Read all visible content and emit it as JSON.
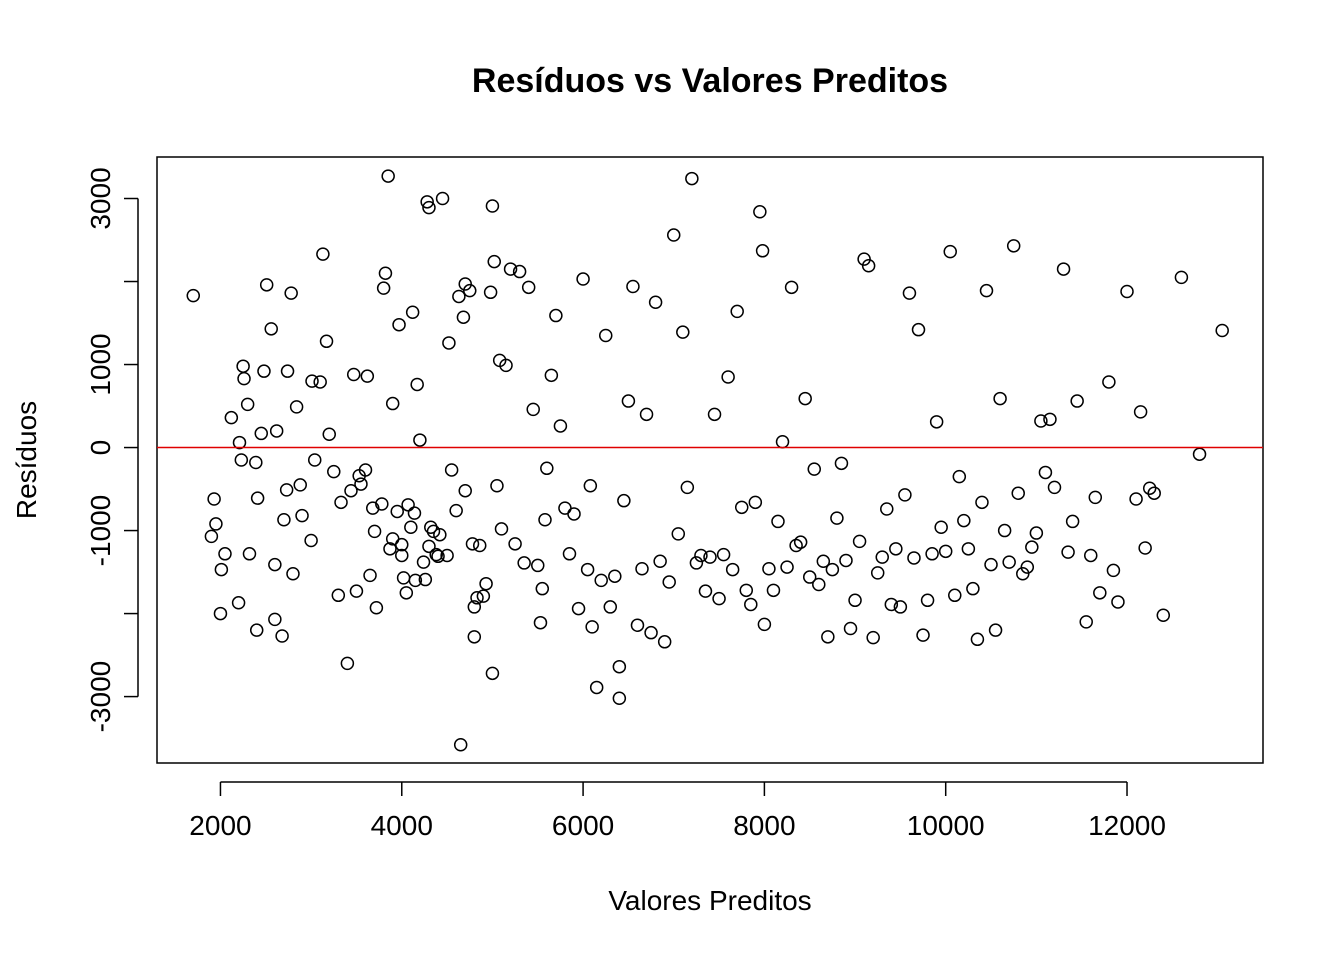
{
  "chart_data": {
    "type": "scatter",
    "title": "Resíduos vs Valores Preditos",
    "xlabel": "Valores Preditos",
    "ylabel": "Resíduos",
    "xlim": [
      1300,
      13500
    ],
    "ylim": [
      -3800,
      3500
    ],
    "x_ticks": [
      {
        "value": 2000,
        "label": "2000"
      },
      {
        "value": 4000,
        "label": "4000"
      },
      {
        "value": 6000,
        "label": "6000"
      },
      {
        "value": 8000,
        "label": "8000"
      },
      {
        "value": 10000,
        "label": "10000"
      },
      {
        "value": 12000,
        "label": "12000"
      }
    ],
    "y_ticks": [
      {
        "value": -3000,
        "label": "-3000"
      },
      {
        "value": -2000,
        "label": ""
      },
      {
        "value": -1000,
        "label": "-1000"
      },
      {
        "value": 0,
        "label": "0"
      },
      {
        "value": 1000,
        "label": "1000"
      },
      {
        "value": 2000,
        "label": ""
      },
      {
        "value": 3000,
        "label": "3000"
      }
    ],
    "reference_line": {
      "y": 0,
      "color": "#e00000"
    },
    "point_color": "#000000",
    "grid": false,
    "points": [
      [
        1700,
        1830
      ],
      [
        1900,
        -1070
      ],
      [
        1930,
        -620
      ],
      [
        1950,
        -920
      ],
      [
        2000,
        -2000
      ],
      [
        2010,
        -1470
      ],
      [
        2050,
        -1280
      ],
      [
        2120,
        360
      ],
      [
        2200,
        -1870
      ],
      [
        2210,
        60
      ],
      [
        2230,
        -150
      ],
      [
        2250,
        980
      ],
      [
        2260,
        830
      ],
      [
        2300,
        520
      ],
      [
        2320,
        -1280
      ],
      [
        2390,
        -180
      ],
      [
        2400,
        -2200
      ],
      [
        2410,
        -610
      ],
      [
        2450,
        170
      ],
      [
        2480,
        920
      ],
      [
        2510,
        1960
      ],
      [
        2560,
        1430
      ],
      [
        2600,
        -1410
      ],
      [
        2600,
        -2070
      ],
      [
        2620,
        200
      ],
      [
        2680,
        -2270
      ],
      [
        2700,
        -870
      ],
      [
        2730,
        -510
      ],
      [
        2740,
        920
      ],
      [
        2780,
        1860
      ],
      [
        2800,
        -1520
      ],
      [
        2840,
        490
      ],
      [
        2880,
        -450
      ],
      [
        2900,
        -820
      ],
      [
        3000,
        -1120
      ],
      [
        3010,
        800
      ],
      [
        3040,
        -150
      ],
      [
        3100,
        790
      ],
      [
        3130,
        2330
      ],
      [
        3170,
        1280
      ],
      [
        3200,
        160
      ],
      [
        3250,
        -290
      ],
      [
        3300,
        -1780
      ],
      [
        3330,
        -660
      ],
      [
        3400,
        -2600
      ],
      [
        3440,
        -520
      ],
      [
        3470,
        880
      ],
      [
        3500,
        -1730
      ],
      [
        3530,
        -340
      ],
      [
        3550,
        -440
      ],
      [
        3600,
        -270
      ],
      [
        3620,
        860
      ],
      [
        3650,
        -1540
      ],
      [
        3680,
        -730
      ],
      [
        3700,
        -1010
      ],
      [
        3720,
        -1930
      ],
      [
        3780,
        -680
      ],
      [
        3800,
        1920
      ],
      [
        3820,
        2100
      ],
      [
        3850,
        3270
      ],
      [
        3870,
        -1220
      ],
      [
        3900,
        530
      ],
      [
        3900,
        -1100
      ],
      [
        3950,
        -770
      ],
      [
        3970,
        1480
      ],
      [
        4000,
        -1170
      ],
      [
        4000,
        -1300
      ],
      [
        4020,
        -1570
      ],
      [
        4050,
        -1750
      ],
      [
        4070,
        -690
      ],
      [
        4100,
        -960
      ],
      [
        4120,
        1630
      ],
      [
        4140,
        -790
      ],
      [
        4150,
        -1600
      ],
      [
        4170,
        760
      ],
      [
        4200,
        90
      ],
      [
        4240,
        -1380
      ],
      [
        4260,
        -1590
      ],
      [
        4280,
        2960
      ],
      [
        4300,
        2890
      ],
      [
        4300,
        -1190
      ],
      [
        4320,
        -960
      ],
      [
        4350,
        -1010
      ],
      [
        4380,
        -1290
      ],
      [
        4400,
        -1310
      ],
      [
        4420,
        -1050
      ],
      [
        4450,
        3000
      ],
      [
        4500,
        -1300
      ],
      [
        4520,
        1260
      ],
      [
        4550,
        -270
      ],
      [
        4600,
        -760
      ],
      [
        4630,
        1820
      ],
      [
        4650,
        -3580
      ],
      [
        4680,
        1570
      ],
      [
        4700,
        1970
      ],
      [
        4700,
        -520
      ],
      [
        4750,
        1890
      ],
      [
        4780,
        -1160
      ],
      [
        4800,
        -1920
      ],
      [
        4800,
        -2280
      ],
      [
        4830,
        -1810
      ],
      [
        4860,
        -1180
      ],
      [
        4900,
        -1790
      ],
      [
        4930,
        -1640
      ],
      [
        4980,
        1870
      ],
      [
        5000,
        2910
      ],
      [
        5000,
        -2720
      ],
      [
        5020,
        2240
      ],
      [
        5050,
        -460
      ],
      [
        5080,
        1050
      ],
      [
        5100,
        -980
      ],
      [
        5150,
        990
      ],
      [
        5200,
        2150
      ],
      [
        5250,
        -1160
      ],
      [
        5300,
        2120
      ],
      [
        5350,
        -1390
      ],
      [
        5400,
        1930
      ],
      [
        5450,
        460
      ],
      [
        5500,
        -1420
      ],
      [
        5530,
        -2110
      ],
      [
        5550,
        -1700
      ],
      [
        5580,
        -870
      ],
      [
        5600,
        -250
      ],
      [
        5650,
        870
      ],
      [
        5700,
        1590
      ],
      [
        5750,
        260
      ],
      [
        5800,
        -730
      ],
      [
        5850,
        -1280
      ],
      [
        5900,
        -800
      ],
      [
        5950,
        -1940
      ],
      [
        6000,
        2030
      ],
      [
        6050,
        -1470
      ],
      [
        6080,
        -460
      ],
      [
        6100,
        -2160
      ],
      [
        6150,
        -2890
      ],
      [
        6200,
        -1600
      ],
      [
        6250,
        1350
      ],
      [
        6300,
        -1920
      ],
      [
        6350,
        -1550
      ],
      [
        6400,
        -3020
      ],
      [
        6400,
        -2640
      ],
      [
        6450,
        -640
      ],
      [
        6500,
        560
      ],
      [
        6550,
        1940
      ],
      [
        6600,
        -2140
      ],
      [
        6650,
        -1460
      ],
      [
        6700,
        400
      ],
      [
        6750,
        -2230
      ],
      [
        6800,
        1750
      ],
      [
        6850,
        -1370
      ],
      [
        6900,
        -2340
      ],
      [
        6950,
        -1620
      ],
      [
        7000,
        2560
      ],
      [
        7050,
        -1040
      ],
      [
        7100,
        1390
      ],
      [
        7150,
        -480
      ],
      [
        7200,
        3240
      ],
      [
        7250,
        -1390
      ],
      [
        7300,
        -1300
      ],
      [
        7350,
        -1730
      ],
      [
        7400,
        -1320
      ],
      [
        7450,
        400
      ],
      [
        7500,
        -1820
      ],
      [
        7550,
        -1290
      ],
      [
        7600,
        850
      ],
      [
        7650,
        -1470
      ],
      [
        7700,
        1640
      ],
      [
        7750,
        -720
      ],
      [
        7800,
        -1720
      ],
      [
        7850,
        -1890
      ],
      [
        7900,
        -660
      ],
      [
        7950,
        2840
      ],
      [
        7980,
        2370
      ],
      [
        8000,
        -2130
      ],
      [
        8050,
        -1460
      ],
      [
        8100,
        -1720
      ],
      [
        8150,
        -890
      ],
      [
        8200,
        70
      ],
      [
        8250,
        -1440
      ],
      [
        8300,
        1930
      ],
      [
        8350,
        -1180
      ],
      [
        8400,
        -1140
      ],
      [
        8450,
        590
      ],
      [
        8500,
        -1560
      ],
      [
        8550,
        -260
      ],
      [
        8600,
        -1650
      ],
      [
        8650,
        -1370
      ],
      [
        8700,
        -2280
      ],
      [
        8750,
        -1470
      ],
      [
        8800,
        -850
      ],
      [
        8850,
        -190
      ],
      [
        8900,
        -1360
      ],
      [
        8950,
        -2180
      ],
      [
        9000,
        -1840
      ],
      [
        9050,
        -1130
      ],
      [
        9100,
        2270
      ],
      [
        9150,
        2190
      ],
      [
        9200,
        -2290
      ],
      [
        9250,
        -1510
      ],
      [
        9300,
        -1320
      ],
      [
        9350,
        -740
      ],
      [
        9400,
        -1890
      ],
      [
        9450,
        -1220
      ],
      [
        9500,
        -1920
      ],
      [
        9550,
        -570
      ],
      [
        9600,
        1860
      ],
      [
        9650,
        -1330
      ],
      [
        9700,
        1420
      ],
      [
        9750,
        -2260
      ],
      [
        9800,
        -1840
      ],
      [
        9850,
        -1280
      ],
      [
        9900,
        310
      ],
      [
        9950,
        -960
      ],
      [
        10000,
        -1250
      ],
      [
        10050,
        2360
      ],
      [
        10100,
        -1780
      ],
      [
        10150,
        -350
      ],
      [
        10200,
        -880
      ],
      [
        10250,
        -1220
      ],
      [
        10300,
        -1700
      ],
      [
        10350,
        -2310
      ],
      [
        10400,
        -660
      ],
      [
        10450,
        1890
      ],
      [
        10500,
        -1410
      ],
      [
        10550,
        -2200
      ],
      [
        10600,
        590
      ],
      [
        10650,
        -1000
      ],
      [
        10700,
        -1380
      ],
      [
        10750,
        2430
      ],
      [
        10800,
        -550
      ],
      [
        10850,
        -1520
      ],
      [
        10900,
        -1440
      ],
      [
        10950,
        -1200
      ],
      [
        11000,
        -1030
      ],
      [
        11050,
        320
      ],
      [
        11100,
        -300
      ],
      [
        11150,
        340
      ],
      [
        11200,
        -480
      ],
      [
        11300,
        2150
      ],
      [
        11350,
        -1260
      ],
      [
        11400,
        -890
      ],
      [
        11450,
        560
      ],
      [
        11550,
        -2100
      ],
      [
        11600,
        -1300
      ],
      [
        11650,
        -600
      ],
      [
        11700,
        -1750
      ],
      [
        11800,
        790
      ],
      [
        11850,
        -1480
      ],
      [
        11900,
        -1860
      ],
      [
        12000,
        1880
      ],
      [
        12100,
        -620
      ],
      [
        12150,
        430
      ],
      [
        12200,
        -1210
      ],
      [
        12250,
        -490
      ],
      [
        12300,
        -550
      ],
      [
        12400,
        -2020
      ],
      [
        12600,
        2050
      ],
      [
        12800,
        -80
      ],
      [
        13050,
        1410
      ]
    ]
  }
}
